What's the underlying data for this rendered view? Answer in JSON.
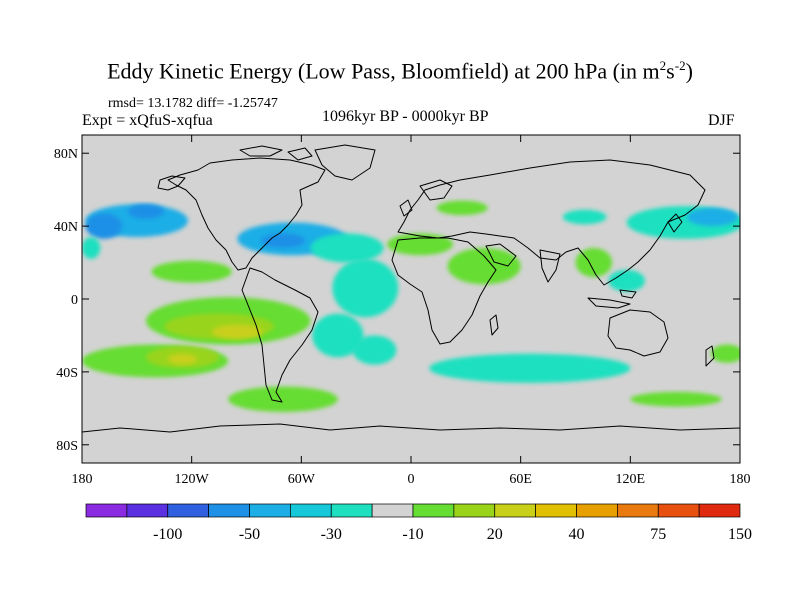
{
  "title": {
    "main": "Eddy Kinetic Energy (Low Pass, Bloomfield) at 200 hPa (in m",
    "sup1": "2",
    "mid": "s",
    "sup2": "-2",
    "end": ")"
  },
  "stats_line": "rmsd= 13.1782 diff= -1.25747",
  "experiment": "Expt = xQfuS-xqfua",
  "period": "1096kyr BP - 0000kyr BP",
  "season": "DJF",
  "map": {
    "lat_labels": [
      "80N",
      "40N",
      "0",
      "40S",
      "80S"
    ],
    "lat_values": [
      80,
      40,
      0,
      -40,
      -80
    ],
    "lon_labels": [
      "180",
      "120W",
      "60W",
      "0",
      "60E",
      "120E",
      "180"
    ],
    "lon_values": [
      -180,
      -120,
      -60,
      0,
      60,
      120,
      180
    ],
    "lon_range": [
      -180,
      180
    ],
    "lat_range": [
      -90,
      90
    ],
    "ocean_land_background": "#d3d3d3",
    "coastline_color": "#000000"
  },
  "colorbar": {
    "colors": [
      "#8a2be2",
      "#5a30e0",
      "#2f60e0",
      "#1e90e6",
      "#1eaee6",
      "#16c8d8",
      "#1ee0c0",
      "#d3d3d3",
      "#66dd33",
      "#99d41a",
      "#c8d01a",
      "#e0c000",
      "#e8a000",
      "#e87a10",
      "#e85010",
      "#e02a10"
    ],
    "tick_labels": [
      "-100",
      "-50",
      "-30",
      "-10",
      "20",
      "40",
      "75",
      "150"
    ]
  },
  "blobs": [
    {
      "lon": -150,
      "lat": 43,
      "rx": 28,
      "ry": 9,
      "color": "#1eaee6"
    },
    {
      "lon": -168,
      "lat": 40,
      "rx": 10,
      "ry": 7,
      "color": "#1e90e6"
    },
    {
      "lon": -175,
      "lat": 28,
      "rx": 5,
      "ry": 6,
      "color": "#1ee0c0"
    },
    {
      "lon": -145,
      "lat": 48,
      "rx": 10,
      "ry": 4,
      "color": "#1e90e6"
    },
    {
      "lon": -65,
      "lat": 33,
      "rx": 30,
      "ry": 9,
      "color": "#1eaee6"
    },
    {
      "lon": -70,
      "lat": 32,
      "rx": 12,
      "ry": 4,
      "color": "#1e90e6"
    },
    {
      "lon": -35,
      "lat": 28,
      "rx": 20,
      "ry": 8,
      "color": "#1ee0c0"
    },
    {
      "lon": -25,
      "lat": 6,
      "rx": 18,
      "ry": 16,
      "color": "#1ee0c0"
    },
    {
      "lon": -40,
      "lat": -20,
      "rx": 14,
      "ry": 12,
      "color": "#1ee0c0"
    },
    {
      "lon": 150,
      "lat": 42,
      "rx": 32,
      "ry": 9,
      "color": "#1ee0c0"
    },
    {
      "lon": 165,
      "lat": 45,
      "rx": 14,
      "ry": 5,
      "color": "#1eaee6"
    },
    {
      "lon": 95,
      "lat": 45,
      "rx": 12,
      "ry": 4,
      "color": "#1ee0c0"
    },
    {
      "lon": 65,
      "lat": -38,
      "rx": 55,
      "ry": 8,
      "color": "#1ee0c0"
    },
    {
      "lon": 28,
      "lat": 50,
      "rx": 14,
      "ry": 4,
      "color": "#66dd33"
    },
    {
      "lon": 40,
      "lat": 18,
      "rx": 20,
      "ry": 10,
      "color": "#66dd33"
    },
    {
      "lon": 5,
      "lat": 30,
      "rx": 18,
      "ry": 6,
      "color": "#66dd33"
    },
    {
      "lon": 100,
      "lat": 20,
      "rx": 10,
      "ry": 8,
      "color": "#66dd33"
    },
    {
      "lon": 118,
      "lat": 10,
      "rx": 10,
      "ry": 6,
      "color": "#1ee0c0"
    },
    {
      "lon": -20,
      "lat": -28,
      "rx": 12,
      "ry": 8,
      "color": "#1ee0c0"
    },
    {
      "lon": -100,
      "lat": -12,
      "rx": 45,
      "ry": 13,
      "color": "#66dd33"
    },
    {
      "lon": -105,
      "lat": -15,
      "rx": 30,
      "ry": 7,
      "color": "#99d41a"
    },
    {
      "lon": -95,
      "lat": -18,
      "rx": 14,
      "ry": 4,
      "color": "#c8d01a"
    },
    {
      "lon": -120,
      "lat": 15,
      "rx": 22,
      "ry": 6,
      "color": "#66dd33"
    },
    {
      "lon": -140,
      "lat": -34,
      "rx": 40,
      "ry": 9,
      "color": "#66dd33"
    },
    {
      "lon": -125,
      "lat": -32,
      "rx": 20,
      "ry": 6,
      "color": "#99d41a"
    },
    {
      "lon": -125,
      "lat": -33,
      "rx": 8,
      "ry": 3,
      "color": "#c8d01a"
    },
    {
      "lon": -70,
      "lat": -55,
      "rx": 30,
      "ry": 7,
      "color": "#66dd33"
    },
    {
      "lon": 145,
      "lat": -55,
      "rx": 25,
      "ry": 4,
      "color": "#66dd33"
    },
    {
      "lon": 173,
      "lat": -30,
      "rx": 9,
      "ry": 5,
      "color": "#66dd33"
    }
  ]
}
